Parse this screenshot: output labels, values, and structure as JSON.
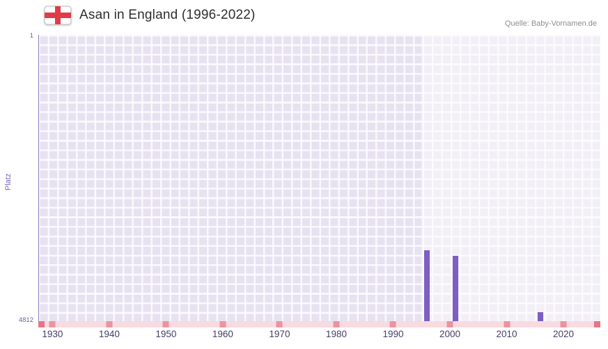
{
  "header": {
    "title": "Asan in England (1996-2022)",
    "source": "Quelle: Baby-Vornamen.de",
    "flag": "england-st-george-cross"
  },
  "chart_data": {
    "type": "bar",
    "title": "Asan in England (1996-2022)",
    "xlabel": "",
    "ylabel": "Platz",
    "y_axis_inverted": true,
    "ylim": [
      1,
      4812
    ],
    "y_tick_labels": [
      "1",
      "4812"
    ],
    "x_ticks": [
      1930,
      1940,
      1950,
      1960,
      1970,
      1980,
      1990,
      2000,
      2010,
      2020
    ],
    "x_domain": [
      1927.5,
      2026.5
    ],
    "grid": true,
    "highlight_start_year": 1995,
    "points": [
      {
        "year": 1996,
        "rank": 3620
      },
      {
        "year": 2001,
        "rank": 3715
      },
      {
        "year": 2016,
        "rank": 4660
      }
    ],
    "bottom_marker_years": [
      1930,
      1940,
      1950,
      1960,
      1970,
      1980,
      1990,
      2000,
      2010,
      2020
    ],
    "bottom_edge_marks": true,
    "colors": {
      "bar": "#7e5ec4",
      "plot_background": "#e7e2f0",
      "highlight_overlay": "rgba(255,255,255,0.45)",
      "baseline_strip": "#f8dbe1",
      "baseline_mark": "#ec93a0",
      "axis_text": "#6c5da6",
      "x_tick_text": "#433d68"
    }
  }
}
